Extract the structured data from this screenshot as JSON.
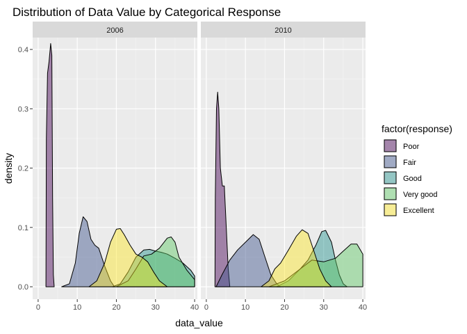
{
  "chart_data": {
    "type": "area",
    "title": "Distribution of Data Value by Categorical Response",
    "xlabel": "data_value",
    "ylabel": "density",
    "xlim": [
      0,
      40
    ],
    "ylim": [
      0,
      0.42
    ],
    "x_ticks": [
      "0",
      "10",
      "20",
      "30",
      "40"
    ],
    "y_ticks": [
      "0.0",
      "0.1",
      "0.2",
      "0.3",
      "0.4"
    ],
    "legend": {
      "title": "factor(response)",
      "placement": "right",
      "entries": [
        {
          "label": "Poor",
          "color": "#440154"
        },
        {
          "label": "Fair",
          "color": "#3b528b"
        },
        {
          "label": "Good",
          "color": "#21908c"
        },
        {
          "label": "Very good",
          "color": "#5dc863"
        },
        {
          "label": "Excellent",
          "color": "#fde725"
        }
      ]
    },
    "panels": [
      {
        "strip": "2006",
        "series": [
          {
            "name": "Poor",
            "color": "#440154",
            "points": [
              [
                2,
                0
              ],
              [
                2.1,
                0.25
              ],
              [
                2.4,
                0.36
              ],
              [
                2.8,
                0.38
              ],
              [
                3.2,
                0.41
              ],
              [
                3.5,
                0.39
              ],
              [
                3.7,
                0.15
              ],
              [
                3.9,
                0.02
              ],
              [
                4.1,
                0
              ]
            ]
          },
          {
            "name": "Fair",
            "color": "#3b528b",
            "points": [
              [
                6,
                0
              ],
              [
                8,
                0.005
              ],
              [
                9.5,
                0.04
              ],
              [
                10.5,
                0.09
              ],
              [
                11.5,
                0.118
              ],
              [
                12.5,
                0.11
              ],
              [
                13.5,
                0.08
              ],
              [
                14.5,
                0.07
              ],
              [
                15.5,
                0.065
              ],
              [
                17,
                0.035
              ],
              [
                18.5,
                0.01
              ],
              [
                19.5,
                0
              ]
            ]
          },
          {
            "name": "Good",
            "color": "#21908c",
            "points": [
              [
                19,
                0
              ],
              [
                21,
                0.005
              ],
              [
                23,
                0.025
              ],
              [
                25,
                0.05
              ],
              [
                27,
                0.062
              ],
              [
                28.5,
                0.063
              ],
              [
                30,
                0.06
              ],
              [
                31.5,
                0.058
              ],
              [
                33,
                0.055
              ],
              [
                35,
                0.048
              ],
              [
                37,
                0.04
              ],
              [
                39,
                0.028
              ],
              [
                40,
                0.018
              ]
            ]
          },
          {
            "name": "Very good",
            "color": "#5dc863",
            "points": [
              [
                20,
                0
              ],
              [
                23,
                0.01
              ],
              [
                25,
                0.03
              ],
              [
                27,
                0.052
              ],
              [
                29,
                0.055
              ],
              [
                31,
                0.065
              ],
              [
                33,
                0.082
              ],
              [
                34,
                0.084
              ],
              [
                35,
                0.075
              ],
              [
                36,
                0.05
              ],
              [
                38,
                0.028
              ],
              [
                40,
                0.012
              ]
            ]
          },
          {
            "name": "Excellent",
            "color": "#fde725",
            "points": [
              [
                13,
                0
              ],
              [
                15,
                0.01
              ],
              [
                17,
                0.04
              ],
              [
                18.5,
                0.075
              ],
              [
                20,
                0.097
              ],
              [
                21,
                0.098
              ],
              [
                22,
                0.088
              ],
              [
                23.5,
                0.07
              ],
              [
                25,
                0.055
              ],
              [
                26.5,
                0.05
              ],
              [
                28,
                0.042
              ],
              [
                29.5,
                0.025
              ],
              [
                31,
                0.01
              ],
              [
                33,
                0
              ]
            ]
          }
        ]
      },
      {
        "strip": "2010",
        "series": [
          {
            "name": "Poor",
            "color": "#440154",
            "points": [
              [
                2.2,
                0
              ],
              [
                2.3,
                0.15
              ],
              [
                2.6,
                0.3
              ],
              [
                2.9,
                0.328
              ],
              [
                3.2,
                0.3
              ],
              [
                3.6,
                0.2
              ],
              [
                4.1,
                0.17
              ],
              [
                4.6,
                0.17
              ],
              [
                5.1,
                0.1
              ],
              [
                5.6,
                0.03
              ],
              [
                6,
                0
              ]
            ]
          },
          {
            "name": "Fair",
            "color": "#3b528b",
            "points": [
              [
                2.5,
                0
              ],
              [
                4,
                0.02
              ],
              [
                6,
                0.045
              ],
              [
                8,
                0.062
              ],
              [
                10,
                0.075
              ],
              [
                12,
                0.088
              ],
              [
                13.5,
                0.08
              ],
              [
                15,
                0.05
              ],
              [
                16.5,
                0.02
              ],
              [
                18,
                0.005
              ],
              [
                19,
                0
              ]
            ]
          },
          {
            "name": "Good",
            "color": "#21908c",
            "points": [
              [
                18,
                0
              ],
              [
                21,
                0.01
              ],
              [
                24,
                0.03
              ],
              [
                26,
                0.045
              ],
              [
                28,
                0.07
              ],
              [
                29.5,
                0.093
              ],
              [
                30.5,
                0.095
              ],
              [
                32,
                0.075
              ],
              [
                33,
                0.045
              ],
              [
                34,
                0.02
              ],
              [
                35,
                0.005
              ],
              [
                36,
                0
              ]
            ]
          },
          {
            "name": "Very good",
            "color": "#5dc863",
            "points": [
              [
                16,
                0
              ],
              [
                20,
                0.01
              ],
              [
                24,
                0.03
              ],
              [
                27,
                0.045
              ],
              [
                30,
                0.042
              ],
              [
                33,
                0.048
              ],
              [
                35,
                0.06
              ],
              [
                37,
                0.072
              ],
              [
                38.5,
                0.072
              ],
              [
                40,
                0.055
              ]
            ]
          },
          {
            "name": "Excellent",
            "color": "#fde725",
            "points": [
              [
                14,
                0
              ],
              [
                16,
                0.01
              ],
              [
                17.5,
                0.03
              ],
              [
                19,
                0.04
              ],
              [
                21,
                0.062
              ],
              [
                23,
                0.085
              ],
              [
                24.5,
                0.096
              ],
              [
                26,
                0.09
              ],
              [
                27.5,
                0.06
              ],
              [
                29,
                0.03
              ],
              [
                30.5,
                0.01
              ],
              [
                32,
                0
              ]
            ]
          }
        ]
      }
    ]
  }
}
